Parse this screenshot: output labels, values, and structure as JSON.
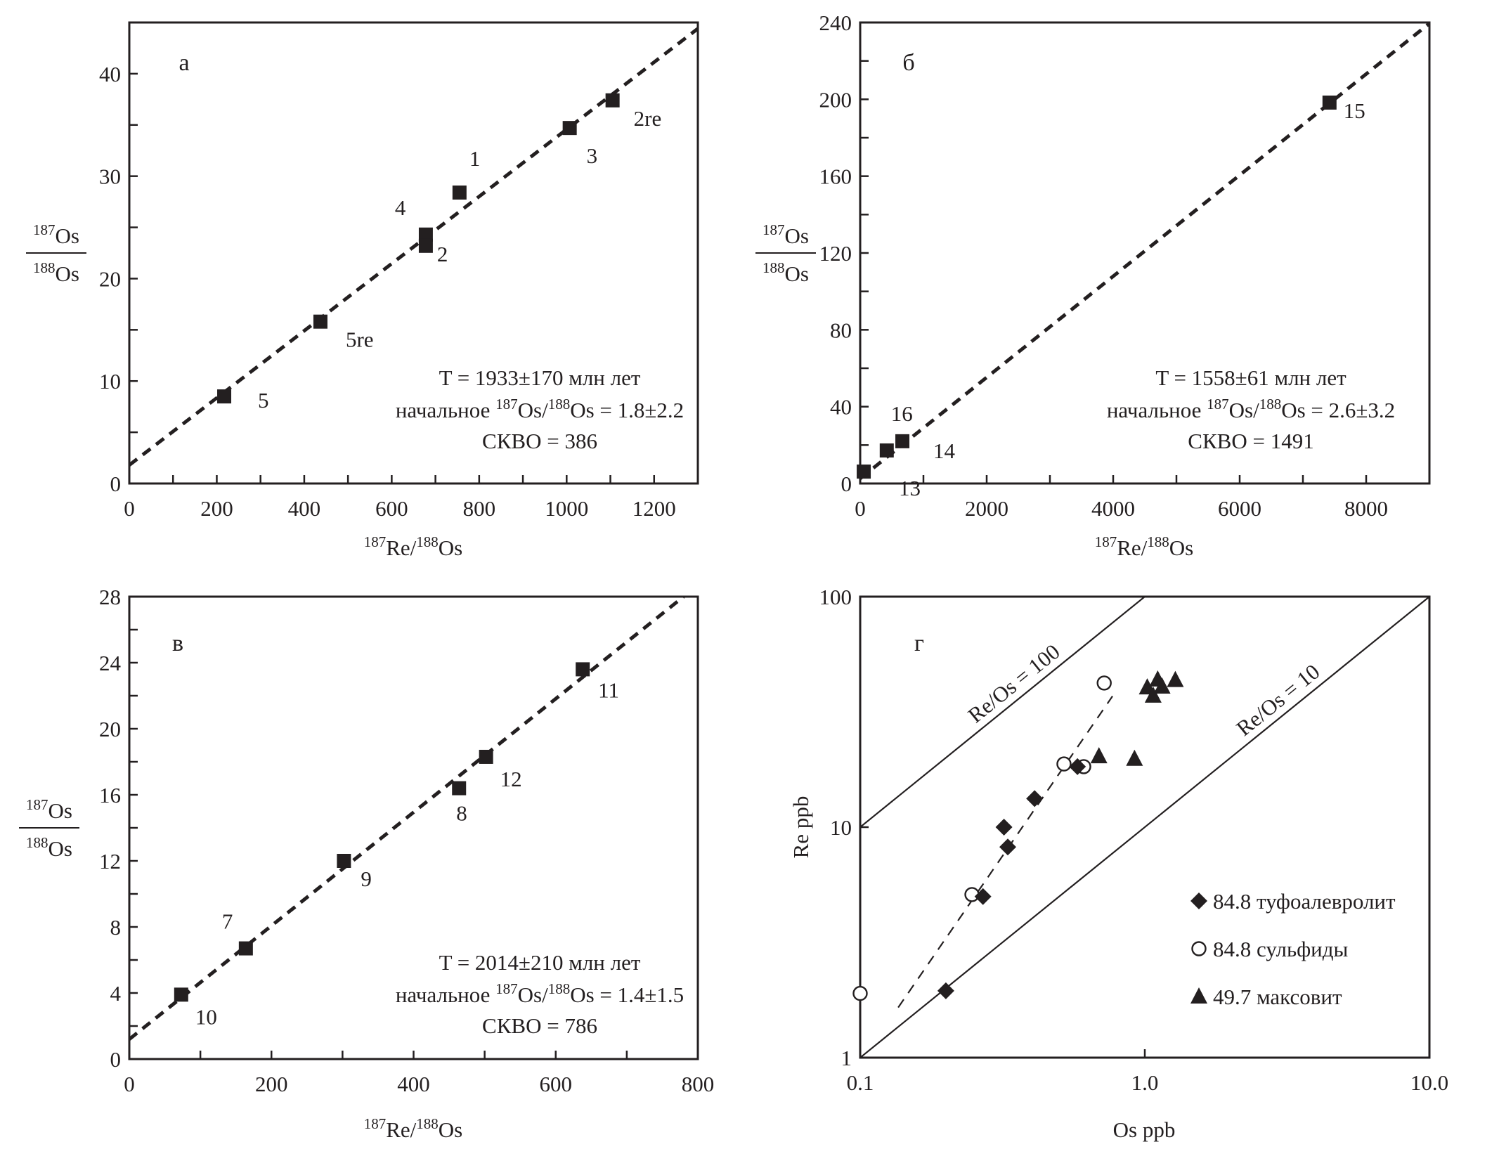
{
  "colors": {
    "ink": "#231f20",
    "background": "#ffffff"
  },
  "chart_data": [
    {
      "id": "a",
      "type": "scatter",
      "panel_label": "а",
      "xlabel": {
        "sup1": "187",
        "base1": "Re/",
        "sup2": "188",
        "base2": "Os"
      },
      "ylabel": {
        "num_sup": "187",
        "num_base": "Os",
        "den_sup": "188",
        "den_base": "Os"
      },
      "xlim": [
        0,
        1300
      ],
      "ylim": [
        0,
        45
      ],
      "x_ticks": [
        0,
        200,
        400,
        600,
        800,
        1000,
        1200
      ],
      "x_minor_ticks": [
        100,
        300,
        500,
        700,
        900,
        1100
      ],
      "y_ticks": [
        0,
        10,
        20,
        30,
        40
      ],
      "y_minor_ticks": [
        5,
        15,
        25,
        35
      ],
      "x_tick_labels": [
        "0",
        "200",
        "400",
        "600",
        "800",
        "1000",
        "1200"
      ],
      "y_tick_labels": [
        "0",
        "10",
        "20",
        "30",
        "40"
      ],
      "marker": "square",
      "points": [
        {
          "label": "1",
          "x": 755,
          "y": 28.4
        },
        {
          "label": "4",
          "x": 678,
          "y": 24.3
        },
        {
          "label": "2",
          "x": 678,
          "y": 23.2
        },
        {
          "label": "3",
          "x": 1007,
          "y": 34.7
        },
        {
          "label": "2re",
          "x": 1105,
          "y": 37.4
        },
        {
          "label": "5re",
          "x": 437,
          "y": 15.8
        },
        {
          "label": "5",
          "x": 217,
          "y": 8.5
        }
      ],
      "fit_line": {
        "x0": 0,
        "y0": 1.8,
        "x1": 1300,
        "y1": 44.4,
        "style": "dashed"
      },
      "annotation": {
        "line1": "T = 1933±170 млн лет",
        "line2_prefix": "начальное ",
        "line2_sup1": "187",
        "line2_mid": "Os/",
        "line2_sup2": "188",
        "line2_suffix": "Os = 1.8±2.2",
        "line3": "СКВО = 386"
      }
    },
    {
      "id": "b",
      "type": "scatter",
      "panel_label": "б",
      "xlabel": {
        "sup1": "187",
        "base1": "Re/",
        "sup2": "188",
        "base2": "Os"
      },
      "ylabel": {
        "num_sup": "187",
        "num_base": "Os",
        "den_sup": "188",
        "den_base": "Os"
      },
      "xlim": [
        0,
        9000
      ],
      "ylim": [
        0,
        240
      ],
      "x_ticks": [
        0,
        2000,
        4000,
        6000,
        8000
      ],
      "x_minor_ticks": [
        1000,
        3000,
        5000,
        7000
      ],
      "y_ticks": [
        0,
        40,
        80,
        120,
        160,
        200,
        240
      ],
      "y_minor_ticks": [
        20,
        60,
        100,
        140,
        180,
        220
      ],
      "x_tick_labels": [
        "0",
        "2000",
        "4000",
        "6000",
        "8000"
      ],
      "y_tick_labels": [
        "0",
        "40",
        "80",
        "120",
        "160",
        "200",
        "240"
      ],
      "marker": "square",
      "points": [
        {
          "label": "15",
          "x": 7420,
          "y": 198.3
        },
        {
          "label": "16",
          "x": 420,
          "y": 17.2
        },
        {
          "label": "14",
          "x": 667,
          "y": 22.0
        },
        {
          "label": "13",
          "x": 56,
          "y": 6.2
        }
      ],
      "fit_line": {
        "x0": 0,
        "y0": 2.6,
        "x1": 9000,
        "y1": 239.5,
        "style": "dashed"
      },
      "annotation": {
        "line1": "T = 1558±61 млн лет",
        "line2_prefix": "начальное ",
        "line2_sup1": "187",
        "line2_mid": "Os/",
        "line2_sup2": "188",
        "line2_suffix": "Os = 2.6±3.2",
        "line3": "СКВО = 1491"
      }
    },
    {
      "id": "c",
      "type": "scatter",
      "panel_label": "в",
      "xlabel": {
        "sup1": "187",
        "base1": "Re/",
        "sup2": "188",
        "base2": "Os"
      },
      "ylabel": {
        "num_sup": "187",
        "num_base": "Os",
        "den_sup": "188",
        "den_base": "Os"
      },
      "xlim": [
        0,
        800
      ],
      "ylim": [
        0,
        28
      ],
      "x_ticks": [
        0,
        200,
        400,
        600,
        800
      ],
      "x_minor_ticks": [
        100,
        300,
        500,
        700
      ],
      "y_ticks": [
        0,
        4,
        8,
        12,
        16,
        20,
        24,
        28
      ],
      "y_minor_ticks": [
        2,
        6,
        10,
        14,
        18,
        22,
        26
      ],
      "x_tick_labels": [
        "0",
        "200",
        "400",
        "600",
        "800"
      ],
      "y_tick_labels": [
        "0",
        "4",
        "8",
        "12",
        "16",
        "20",
        "24",
        "28"
      ],
      "marker": "square",
      "points": [
        {
          "label": "11",
          "x": 638,
          "y": 23.6
        },
        {
          "label": "12",
          "x": 502,
          "y": 18.3
        },
        {
          "label": "8",
          "x": 464,
          "y": 16.4
        },
        {
          "label": "9",
          "x": 302,
          "y": 12.0
        },
        {
          "label": "7",
          "x": 164,
          "y": 6.7
        },
        {
          "label": "10",
          "x": 73,
          "y": 3.9
        }
      ],
      "fit_line": {
        "x0": 0,
        "y0": 1.2,
        "x1": 780,
        "y1": 28.0,
        "style": "dashed"
      },
      "annotation": {
        "line1": "T = 2014±210 млн лет",
        "line2_prefix": "начальное ",
        "line2_sup1": "187",
        "line2_mid": "Os/",
        "line2_sup2": "188",
        "line2_suffix": "Os = 1.4±1.5",
        "line3": "СКВО = 786"
      }
    },
    {
      "id": "d",
      "type": "scatter",
      "scale": "log-log",
      "panel_label": "г",
      "xlabel": "Os ppb",
      "ylabel": "Re ppb",
      "xlim": [
        0.1,
        10
      ],
      "ylim": [
        1,
        100
      ],
      "x_ticks": [
        0.1,
        1,
        10
      ],
      "y_ticks": [
        1,
        10,
        100
      ],
      "x_tick_labels": [
        "0.1",
        "1.0",
        "10.0"
      ],
      "y_tick_labels": [
        "1",
        "10",
        "100"
      ],
      "reference_lines": [
        {
          "label": "Re/Os = 100",
          "ratio": 100
        },
        {
          "label": "Re/Os = 10",
          "ratio": 10
        }
      ],
      "trend_line": {
        "x0": 0.136,
        "y0": 1.65,
        "x1": 0.77,
        "y1": 37,
        "style": "dashed"
      },
      "series": [
        {
          "name": "84.8 туфоалевролит",
          "marker": "diamond",
          "points": [
            {
              "x": 0.58,
              "y": 18.3
            },
            {
              "x": 0.41,
              "y": 13.3
            },
            {
              "x": 0.32,
              "y": 10.0
            },
            {
              "x": 0.33,
              "y": 8.2
            },
            {
              "x": 0.27,
              "y": 5.0
            },
            {
              "x": 0.2,
              "y": 1.95
            }
          ]
        },
        {
          "name": "84.8 сульфиды",
          "marker": "open-circle",
          "points": [
            {
              "x": 0.72,
              "y": 42.2
            },
            {
              "x": 0.52,
              "y": 18.8
            },
            {
              "x": 0.61,
              "y": 18.3
            },
            {
              "x": 0.247,
              "y": 5.1
            },
            {
              "x": 0.1,
              "y": 1.9
            }
          ]
        },
        {
          "name": "49.7 максовит",
          "marker": "triangle",
          "points": [
            {
              "x": 1.02,
              "y": 40.4
            },
            {
              "x": 1.11,
              "y": 43.7
            },
            {
              "x": 1.28,
              "y": 43.5
            },
            {
              "x": 1.15,
              "y": 40.7
            },
            {
              "x": 1.07,
              "y": 37.2
            },
            {
              "x": 0.69,
              "y": 20.3
            },
            {
              "x": 0.92,
              "y": 19.8
            }
          ]
        }
      ],
      "legend_position": "bottom-right"
    }
  ]
}
